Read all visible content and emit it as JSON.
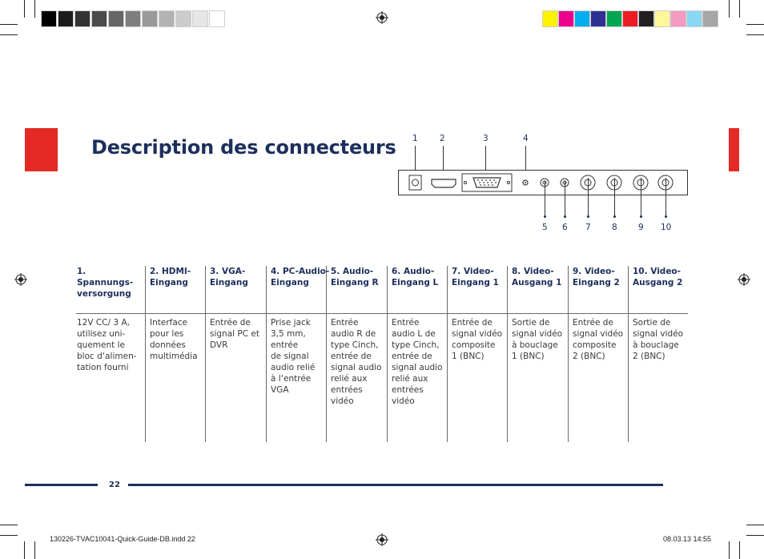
{
  "colors": {
    "grayscale_bar": [
      "#000000",
      "#1c1c1c",
      "#333333",
      "#4b4b4b",
      "#666666",
      "#7e7e7e",
      "#999999",
      "#b3b3b3",
      "#cccccc",
      "#e6e6e6",
      "#ffffff"
    ],
    "color_bar": [
      "#fff200",
      "#ec008c",
      "#00aeef",
      "#2e3192",
      "#00a651",
      "#ed1c24",
      "#231f20",
      "#fff799",
      "#f49ac1",
      "#8ad7f5",
      "#a6a6a6"
    ],
    "accent_red": "#e42a24",
    "title_blue": "#1d2f5b"
  },
  "title": "Description des connecteurs",
  "diagram": {
    "top_numbers": [
      "1",
      "2",
      "3",
      "4"
    ],
    "bottom_numbers": [
      "5",
      "6",
      "7",
      "8",
      "9",
      "10"
    ]
  },
  "columns": [
    {
      "header_line1": "1. Spannungs-",
      "header_line2": "versorgung",
      "text": [
        "12V CC/ 3 A,",
        "utilisez uni-",
        "quement le",
        "bloc d‘alimen-",
        "tation fourni"
      ]
    },
    {
      "header_line1": "2. HDMI-",
      "header_line2": "Eingang",
      "text": [
        "Interface",
        "pour les",
        "données",
        "multimédia"
      ]
    },
    {
      "header_line1": "3. VGA-",
      "header_line2": "Eingang",
      "text": [
        "Entrée de",
        "signal PC et",
        "DVR"
      ]
    },
    {
      "header_line1": "4. PC-Audio-",
      "header_line2": "Eingang",
      "text": [
        "Prise jack",
        "3,5 mm,",
        "entrée",
        "de signal",
        "audio relié",
        "à l‘entrée",
        "VGA"
      ]
    },
    {
      "header_line1": "5. Audio-",
      "header_line2": "Eingang R",
      "text": [
        "Entrée",
        "audio R de",
        "type Cinch,",
        "entrée de",
        "signal audio",
        "relié aux",
        "entrées",
        "vidéo"
      ]
    },
    {
      "header_line1": "6. Audio-",
      "header_line2": "Eingang L",
      "text": [
        "Entrée",
        "audio L de",
        "type Cinch,",
        "entrée de",
        "signal audio",
        "relié aux",
        "entrées",
        "vidéo"
      ]
    },
    {
      "header_line1": "7. Video-",
      "header_line2": "Eingang 1",
      "text": [
        "Entrée de",
        "signal vidéo",
        "composite",
        "1 (BNC)"
      ]
    },
    {
      "header_line1": "8. Video-",
      "header_line2": "Ausgang 1",
      "text": [
        "Sortie de",
        "signal vidéo",
        "à bouclage",
        "1 (BNC)"
      ]
    },
    {
      "header_line1": "9. Video-",
      "header_line2": "Eingang 2",
      "text": [
        "Entrée de",
        "signal vidéo",
        "composite",
        "2 (BNC)"
      ]
    },
    {
      "header_line1": "10. Video-",
      "header_line2": "Ausgang 2",
      "text": [
        "Sortie de",
        "signal vidéo",
        "à bouclage",
        "2 (BNC)"
      ]
    }
  ],
  "footer": {
    "page_number": "22",
    "slug_left": "130226-TVAC10041-Quick-Guide-DB.indd   22",
    "slug_right": "08.03.13   14:55"
  }
}
